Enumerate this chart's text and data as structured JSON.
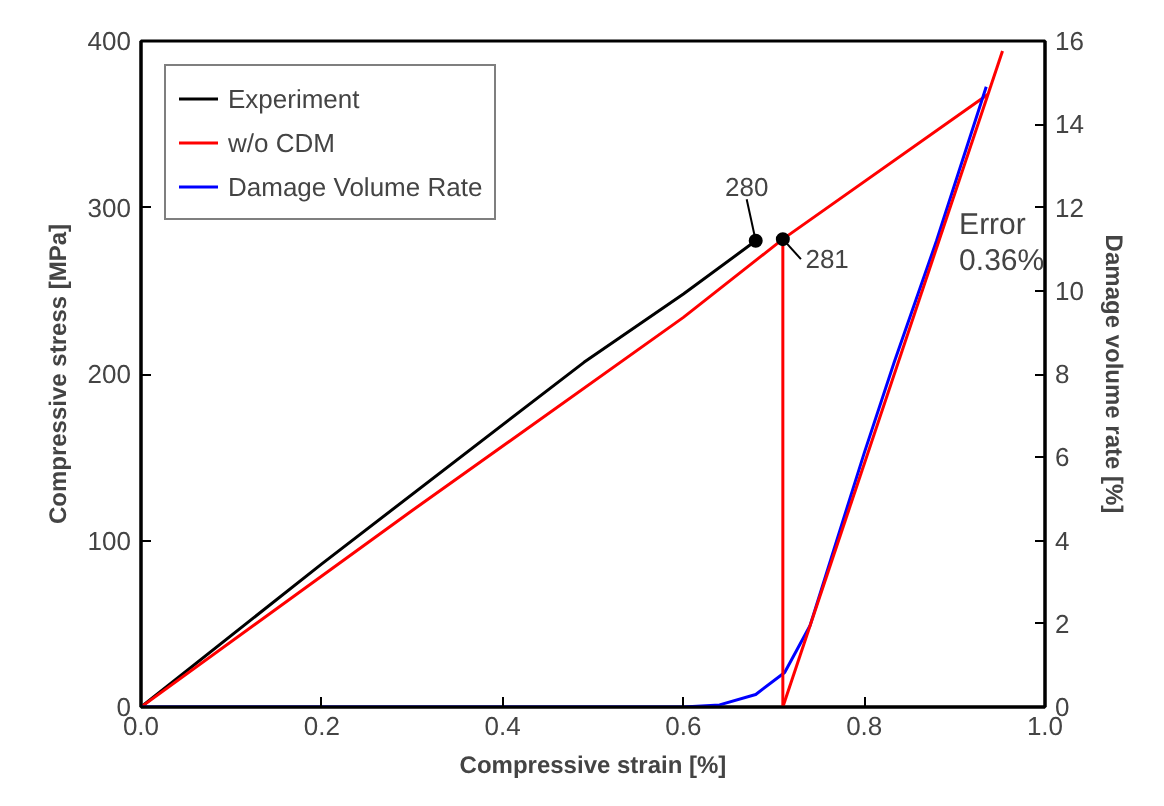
{
  "chart_data": {
    "type": "line",
    "xlabel": "Compressive strain [%]",
    "ylabel": "Compressive stress [MPa]",
    "y2label": "Damage volume rate [%]",
    "xlim": [
      0,
      1.0
    ],
    "xticks": [
      {
        "value": 0,
        "label": "0.0"
      },
      0.2,
      0.4,
      0.6,
      0.8,
      {
        "value": 1.0,
        "label": "1.0"
      }
    ],
    "ylim": [
      0,
      400
    ],
    "yticks": [
      0,
      100,
      200,
      300,
      400
    ],
    "y2lim": [
      0,
      16
    ],
    "y2ticks": [
      0,
      2,
      4,
      6,
      8,
      10,
      12,
      14,
      16
    ],
    "series": [
      {
        "name": "Experiment",
        "color": "#000000",
        "x": [
          0,
          0.2,
          0.49,
          0.6,
          0.68
        ],
        "values": [
          0,
          86,
          207,
          248,
          280
        ]
      },
      {
        "name": "w/o CDM",
        "color": "#ff0000",
        "x": [
          0,
          0.3,
          0.6,
          0.71,
          0.937
        ],
        "values": [
          0,
          118,
          234,
          281,
          368
        ]
      },
      {
        "name": "Damage Volume Rate",
        "color": "#0000ff",
        "axis": "y2",
        "x": [
          0,
          0.6,
          0.64,
          0.68,
          0.712,
          0.74,
          0.766,
          0.8,
          0.833,
          0.88,
          0.935
        ],
        "values": [
          0,
          0,
          0.05,
          0.3,
          0.83,
          1.95,
          3.75,
          6.1,
          8.27,
          11.2,
          14.9
        ]
      },
      {
        "color": "#ff0000",
        "x": [
          0.71,
          0.71
        ],
        "values": [
          0,
          281
        ]
      },
      {
        "color": "#ff0000",
        "axis": "y2",
        "x": [
          0.71,
          0.953
        ],
        "values": [
          0,
          15.76
        ]
      }
    ],
    "annotations": [
      {
        "text": "280",
        "x": 0.68,
        "y": 280
      },
      {
        "text": "281",
        "x": 0.71,
        "y": 281
      },
      "Error",
      "0.36%"
    ],
    "legend": "top left",
    "grid": false,
    "line_style": "solid"
  }
}
